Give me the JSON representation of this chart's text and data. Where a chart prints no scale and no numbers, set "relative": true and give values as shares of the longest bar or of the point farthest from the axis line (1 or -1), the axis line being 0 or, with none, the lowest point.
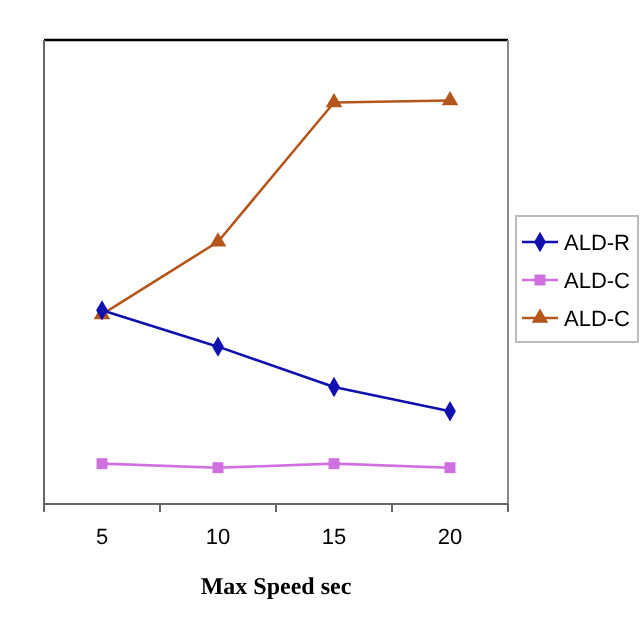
{
  "chart_data": {
    "type": "line",
    "xlabel": "Max Speed sec",
    "categories": [
      "5",
      "10",
      "15",
      "20"
    ],
    "relative": true,
    "legend": "right",
    "series": [
      {
        "name": "ALD-R",
        "color": "#1010b0",
        "marker": "diamond",
        "values": [
          0.48,
          0.39,
          0.29,
          0.23
        ]
      },
      {
        "name": "ALD-C",
        "color": "#d070e0",
        "marker": "square",
        "values": [
          0.1,
          0.09,
          0.1,
          0.09
        ]
      },
      {
        "name": "ALD-C",
        "color": "#b5561c",
        "marker": "triangle",
        "values": [
          0.47,
          0.65,
          0.995,
          1
        ]
      }
    ]
  }
}
